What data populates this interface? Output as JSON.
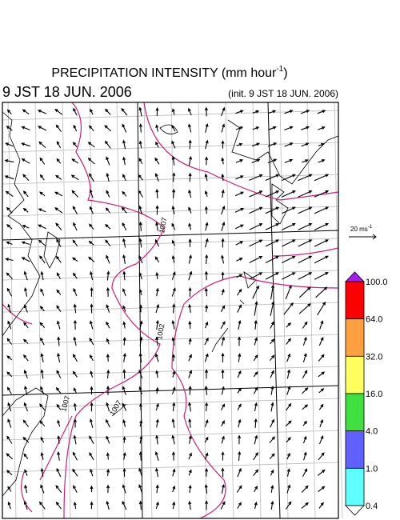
{
  "header": {
    "title": {
      "text": "PRECIPITATION INTENSITY (mm hour",
      "superscript": "-1",
      "close": ")"
    },
    "valid_time": "9 JST 18 JUN. 2006",
    "init_time": "(init. 9 JST 18 JUN. 2006)"
  },
  "vector_scale": {
    "text": "20 ms",
    "superscript": "-1"
  },
  "colorbar": {
    "labels": [
      "100.0",
      "64.0",
      "32.0",
      "16.0",
      "4.0",
      "1.0",
      "0.4"
    ],
    "colors": [
      "#a020f0",
      "#ff0000",
      "#ffa040",
      "#ffff60",
      "#40e040",
      "#6060ff",
      "#60ffff",
      "#ffffff"
    ]
  },
  "contour_labels": [
    "1007",
    "1002",
    "1007",
    "1007"
  ]
}
